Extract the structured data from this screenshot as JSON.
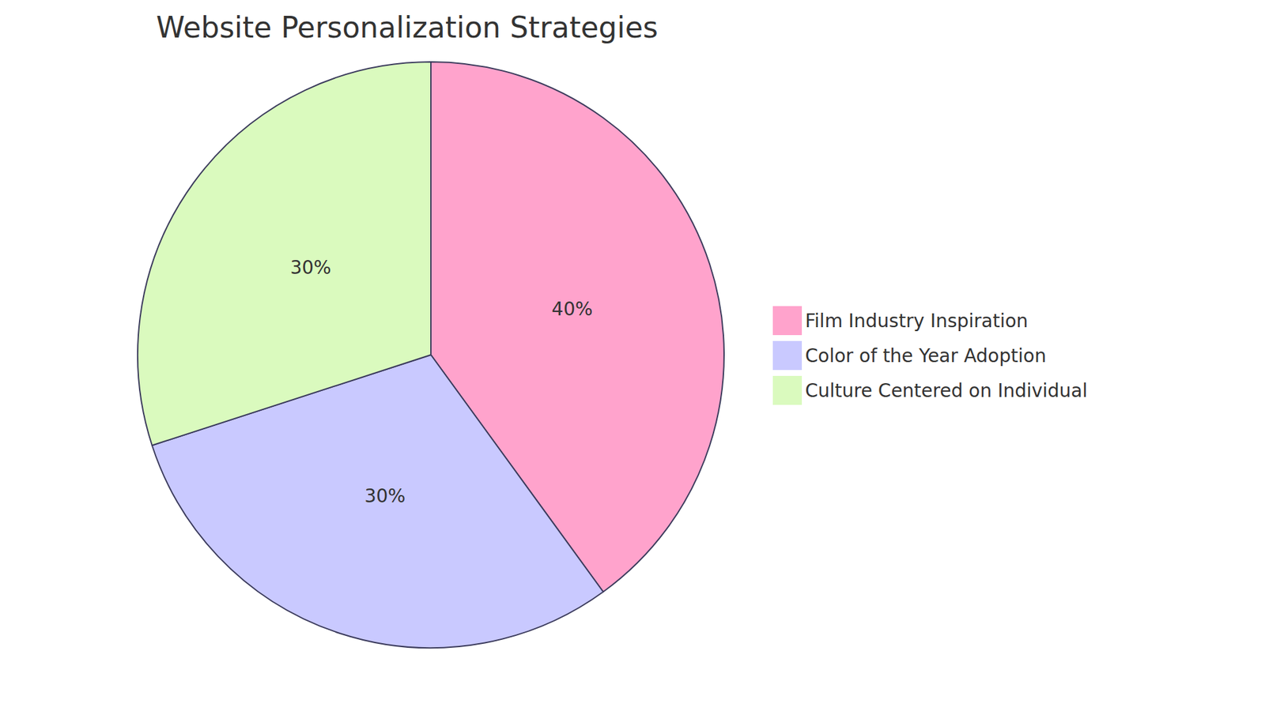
{
  "chart_data": {
    "type": "pie",
    "title": "Website Personalization Strategies",
    "categories": [
      "Film Industry Inspiration",
      "Color of the Year Adoption",
      "Culture Centered on Individual"
    ],
    "values": [
      40,
      30,
      30
    ],
    "value_labels": [
      "40%",
      "30%",
      "30%"
    ],
    "colors": [
      "#ffa3cc",
      "#c9c9ff",
      "#dafabe"
    ],
    "data_labels": true,
    "legend": "right"
  }
}
